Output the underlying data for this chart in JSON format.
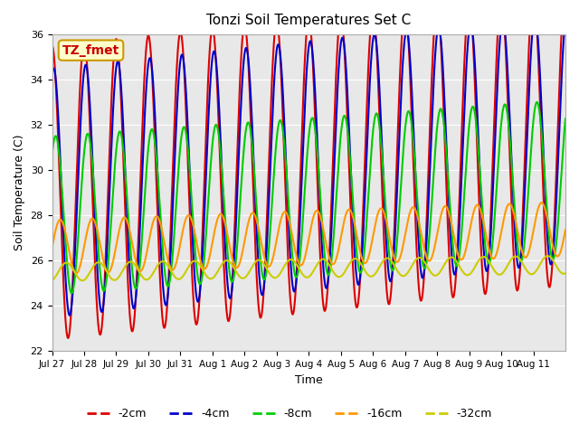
{
  "title": "Tonzi Soil Temperatures Set C",
  "ylabel": "Soil Temperature (C)",
  "xlabel": "Time",
  "ylim": [
    22,
    36
  ],
  "yticks": [
    22,
    24,
    26,
    28,
    30,
    32,
    34,
    36
  ],
  "xtick_labels": [
    "Jul 27",
    "Jul 28",
    "Jul 29",
    "Jul 30",
    "Jul 31",
    "Aug 1",
    "Aug 2",
    "Aug 3",
    "Aug 4",
    "Aug 5",
    "Aug 6",
    "Aug 7",
    "Aug 8",
    "Aug 9",
    "Aug 10",
    "Aug 11"
  ],
  "label_text": "TZ_fmet",
  "lines": {
    "-2cm": {
      "color": "#dd0000",
      "lw": 1.5,
      "mean": 29.0,
      "amp": 6.5,
      "phase": 0.0,
      "mean_trend": 0.15
    },
    "-4cm": {
      "color": "#0000cc",
      "lw": 1.5,
      "mean": 29.0,
      "amp": 5.5,
      "phase": 0.3,
      "mean_trend": 0.15
    },
    "-8cm": {
      "color": "#00cc00",
      "lw": 1.5,
      "mean": 28.0,
      "amp": 3.5,
      "phase": 0.7,
      "mean_trend": 0.1
    },
    "-16cm": {
      "color": "#ff9900",
      "lw": 1.5,
      "mean": 26.6,
      "amp": 1.2,
      "phase": 1.6,
      "mean_trend": 0.05
    },
    "-32cm": {
      "color": "#cccc00",
      "lw": 1.5,
      "mean": 25.5,
      "amp": 0.4,
      "phase": 2.8,
      "mean_trend": 0.02
    }
  },
  "legend_order": [
    "-2cm",
    "-4cm",
    "-8cm",
    "-16cm",
    "-32cm"
  ],
  "bg_color": "#e8e8e8",
  "fig_bg": "#ffffff",
  "period_hours": 24
}
